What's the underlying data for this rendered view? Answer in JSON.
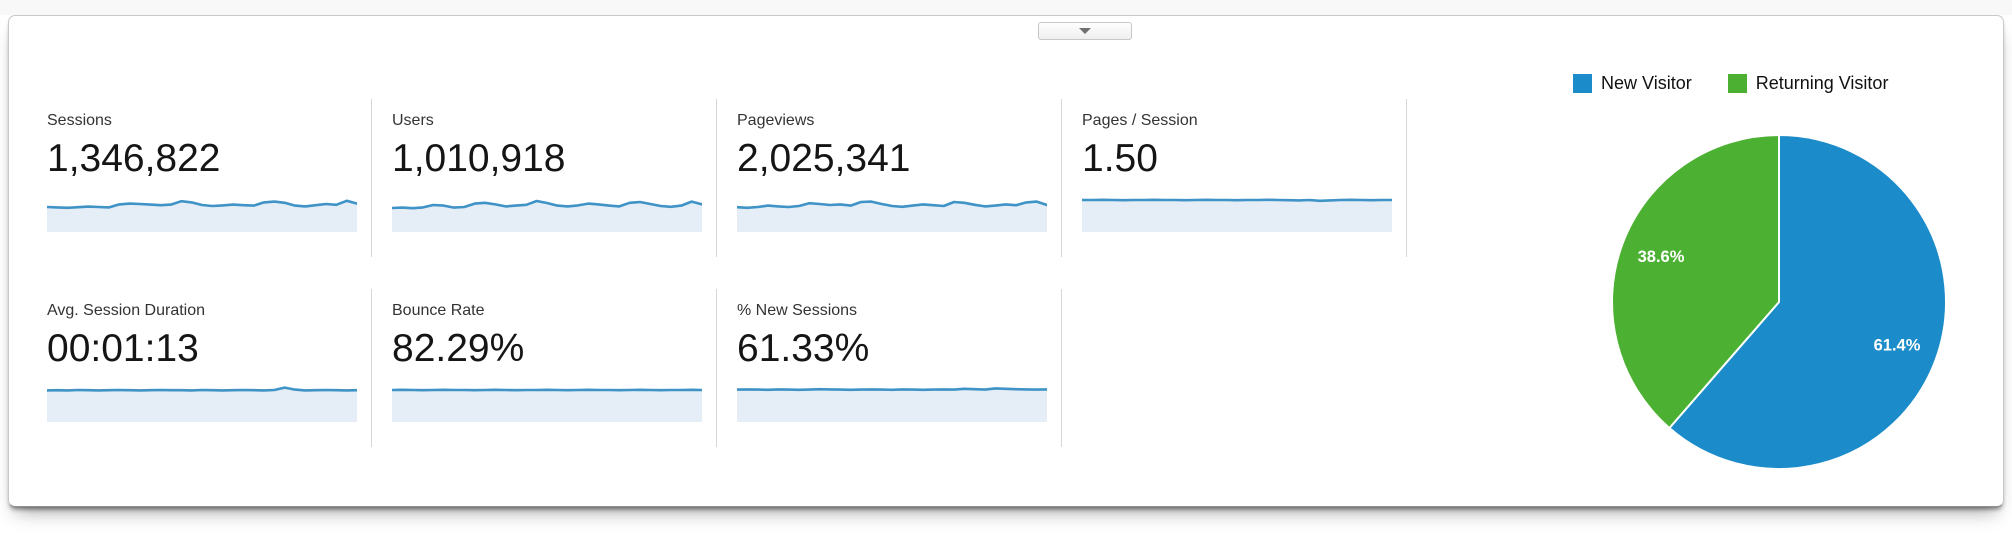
{
  "panel": {
    "border_color": "#c9c9c9",
    "collapse_button": {
      "icon": "triangle-down"
    }
  },
  "metrics": [
    {
      "label": "Sessions",
      "value": "1,346,822"
    },
    {
      "label": "Users",
      "value": "1,010,918"
    },
    {
      "label": "Pageviews",
      "value": "2,025,341"
    },
    {
      "label": "Pages / Session",
      "value": "1.50"
    },
    {
      "label": "Avg. Session Duration",
      "value": "00:01:13"
    },
    {
      "label": "Bounce Rate",
      "value": "82.29%"
    },
    {
      "label": "% New Sessions",
      "value": "61.33%"
    }
  ],
  "sparkline_style": {
    "line_color": "#3f93c6",
    "fill_color": "#e5eef6"
  },
  "chart_data": [
    {
      "type": "pie",
      "labels": [
        "New Visitor",
        "Returning Visitor"
      ],
      "values": [
        61.4,
        38.6
      ],
      "value_labels": [
        "61.4%",
        "38.6%"
      ],
      "colors": [
        "#1b8bc9",
        "#4cb132"
      ],
      "label_text_color": "#ffffff",
      "legend_position": "top-right",
      "start_angle_deg": 0,
      "direction": "clockwise"
    },
    {
      "type": "area",
      "name": "metric-sparklines",
      "normalized": true,
      "note": "sparkline values normalized 0-1, one series per metric card, left-to-right over time",
      "series": [
        {
          "name": "Sessions",
          "values": [
            0.45,
            0.43,
            0.41,
            0.44,
            0.47,
            0.45,
            0.43,
            0.58,
            0.62,
            0.6,
            0.57,
            0.54,
            0.57,
            0.74,
            0.68,
            0.55,
            0.5,
            0.53,
            0.57,
            0.54,
            0.52,
            0.68,
            0.72,
            0.66,
            0.52,
            0.48,
            0.54,
            0.6,
            0.56,
            0.76,
            0.62
          ]
        },
        {
          "name": "Users",
          "values": [
            0.4,
            0.42,
            0.39,
            0.43,
            0.55,
            0.52,
            0.42,
            0.45,
            0.62,
            0.66,
            0.58,
            0.48,
            0.52,
            0.56,
            0.75,
            0.65,
            0.52,
            0.48,
            0.53,
            0.62,
            0.58,
            0.52,
            0.48,
            0.66,
            0.7,
            0.6,
            0.5,
            0.46,
            0.52,
            0.72,
            0.58
          ]
        },
        {
          "name": "Pageviews",
          "values": [
            0.44,
            0.41,
            0.45,
            0.52,
            0.48,
            0.45,
            0.5,
            0.64,
            0.6,
            0.55,
            0.58,
            0.52,
            0.7,
            0.72,
            0.6,
            0.5,
            0.46,
            0.52,
            0.58,
            0.54,
            0.5,
            0.7,
            0.66,
            0.56,
            0.48,
            0.52,
            0.58,
            0.54,
            0.68,
            0.72,
            0.55
          ]
        },
        {
          "name": "Pages / Session",
          "values": [
            0.8,
            0.8,
            0.81,
            0.8,
            0.79,
            0.8,
            0.8,
            0.81,
            0.8,
            0.8,
            0.79,
            0.8,
            0.81,
            0.8,
            0.8,
            0.79,
            0.8,
            0.8,
            0.81,
            0.8,
            0.79,
            0.78,
            0.8,
            0.76,
            0.78,
            0.8,
            0.81,
            0.8,
            0.79,
            0.8,
            0.8
          ]
        },
        {
          "name": "Avg. Session Duration",
          "values": [
            0.78,
            0.79,
            0.78,
            0.8,
            0.79,
            0.78,
            0.79,
            0.8,
            0.79,
            0.78,
            0.79,
            0.8,
            0.79,
            0.79,
            0.78,
            0.8,
            0.79,
            0.78,
            0.79,
            0.8,
            0.79,
            0.78,
            0.8,
            0.92,
            0.82,
            0.78,
            0.79,
            0.8,
            0.79,
            0.78,
            0.79
          ]
        },
        {
          "name": "Bounce Rate",
          "values": [
            0.8,
            0.81,
            0.8,
            0.79,
            0.8,
            0.81,
            0.8,
            0.8,
            0.79,
            0.8,
            0.81,
            0.8,
            0.79,
            0.8,
            0.8,
            0.81,
            0.8,
            0.79,
            0.8,
            0.81,
            0.8,
            0.8,
            0.79,
            0.8,
            0.81,
            0.8,
            0.79,
            0.8,
            0.8,
            0.81,
            0.8
          ]
        },
        {
          "name": "% New Sessions",
          "values": [
            0.82,
            0.83,
            0.82,
            0.81,
            0.83,
            0.82,
            0.81,
            0.82,
            0.84,
            0.83,
            0.82,
            0.81,
            0.82,
            0.83,
            0.82,
            0.81,
            0.83,
            0.82,
            0.81,
            0.82,
            0.83,
            0.82,
            0.86,
            0.84,
            0.82,
            0.88,
            0.86,
            0.84,
            0.83,
            0.82,
            0.83
          ]
        }
      ]
    }
  ]
}
